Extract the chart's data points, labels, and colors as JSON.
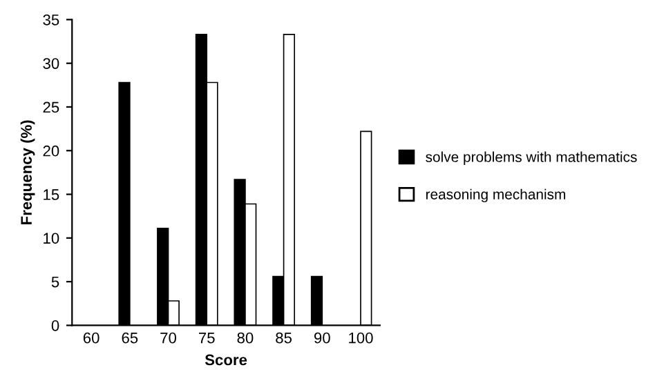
{
  "chart_data": {
    "type": "bar",
    "xlabel": "Score",
    "ylabel": "Frequency (%)",
    "categories": [
      "60",
      "65",
      "70",
      "75",
      "80",
      "85",
      "90",
      "100"
    ],
    "series": [
      {
        "name": "solve problems with mathematics",
        "color": "#000000",
        "values": [
          0,
          27.8,
          11.1,
          33.3,
          16.7,
          5.6,
          5.6,
          0
        ]
      },
      {
        "name": "reasoning mechanism",
        "color": "#ffffff",
        "values": [
          0,
          0,
          2.8,
          27.8,
          13.9,
          33.3,
          0,
          22.2
        ]
      }
    ],
    "ylim": [
      0,
      35
    ],
    "yticks": [
      0,
      5,
      10,
      15,
      20,
      25,
      30,
      35
    ],
    "grid": false,
    "legend": "right"
  }
}
